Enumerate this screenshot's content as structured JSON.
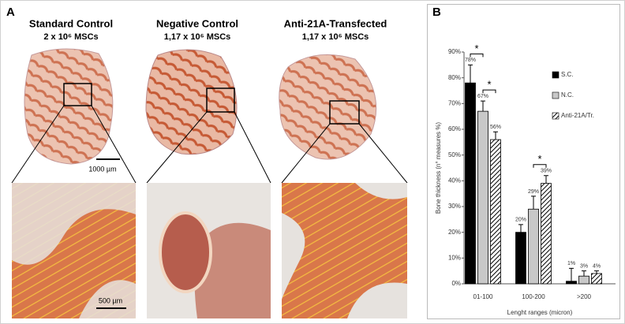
{
  "panel_a": {
    "label": "A",
    "columns": [
      {
        "title": "Standard Control",
        "subtitle": "2 x 10⁶  MSCs"
      },
      {
        "title": "Negative Control",
        "subtitle": "1,17 x 10⁶ MSCs"
      },
      {
        "title": "Anti-21A-Transfected",
        "subtitle": "1,17 x 10⁶ MSCs"
      }
    ],
    "scale_bars": [
      "1000 µm",
      "500 µm"
    ]
  },
  "chart_data": {
    "type": "bar",
    "label": "B",
    "x_label": "Lenght ranges (micron)",
    "y_label": "Bone thickness (n° measures %)",
    "categories": [
      "01-100",
      "100-200",
      ">200"
    ],
    "series": [
      {
        "name": "S.C.",
        "color": "#000000",
        "values": [
          78,
          20,
          1
        ],
        "errors": [
          7,
          3,
          5
        ],
        "value_labels": [
          "78%",
          "20%",
          "1%"
        ]
      },
      {
        "name": "N.C.",
        "color": "#c8c8c8",
        "values": [
          67,
          29,
          3
        ],
        "errors": [
          4,
          5,
          2
        ],
        "value_labels": [
          "67%",
          "29%",
          "3%"
        ]
      },
      {
        "name": "Anti-21A/Tr.",
        "color": "hatch",
        "values": [
          56,
          39,
          4
        ],
        "errors": [
          3,
          3,
          1
        ],
        "value_labels": [
          "56%",
          "39%",
          "4%"
        ]
      }
    ],
    "ylim": [
      0,
      90
    ],
    "yticks": [
      {
        "value": 0,
        "label": "0%"
      },
      {
        "value": 10,
        "label": "10%"
      },
      {
        "value": 20,
        "label": "20%"
      },
      {
        "value": 30,
        "label": "30%"
      },
      {
        "value": 40,
        "label": "40%"
      },
      {
        "value": 50,
        "label": "50%"
      },
      {
        "value": 60,
        "label": "60%"
      },
      {
        "value": 70,
        "label": "70%"
      },
      {
        "value": 80,
        "label": "80%"
      },
      {
        "value": 90,
        "label": "90%"
      }
    ],
    "significance": [
      {
        "category": 0,
        "series": [
          0,
          1
        ],
        "label": "*"
      },
      {
        "category": 0,
        "series": [
          1,
          2
        ],
        "label": "*"
      },
      {
        "category": 1,
        "series": [
          1,
          2
        ],
        "label": "*"
      }
    ]
  }
}
